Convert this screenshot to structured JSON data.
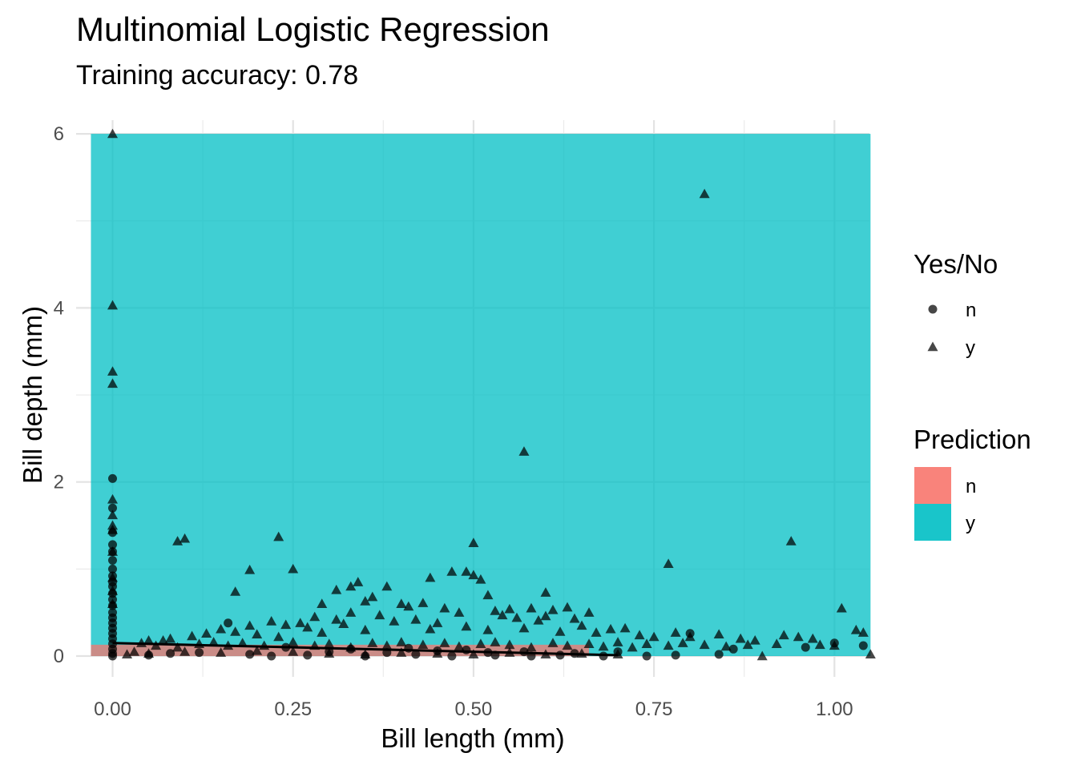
{
  "chart_data": {
    "type": "scatter",
    "title": "Multinomial Logistic Regression",
    "subtitle": "Training accuracy: 0.78",
    "xlabel": "Bill length (mm)",
    "ylabel": "Bill depth (mm)",
    "xlim": [
      -0.03,
      1.05
    ],
    "ylim": [
      0,
      6
    ],
    "x_ticks": [
      "0.00",
      "0.25",
      "0.50",
      "0.75",
      "1.00"
    ],
    "x_tick_values": [
      0,
      0.25,
      0.5,
      0.75,
      1.0
    ],
    "y_ticks": [
      "0",
      "2",
      "4",
      "6"
    ],
    "y_tick_values": [
      0,
      2,
      4,
      6
    ],
    "grid": true,
    "legend_position": "right",
    "prediction_regions": [
      {
        "class": "y",
        "x": [
          -0.03,
          1.05
        ],
        "y": [
          0,
          6
        ]
      },
      {
        "class": "n",
        "x": [
          -0.03,
          0.66
        ],
        "y": [
          0,
          0.13
        ]
      }
    ],
    "boundary_curve": {
      "x": [
        0.0,
        0.1,
        0.2,
        0.3,
        0.4,
        0.5,
        0.6,
        0.7
      ],
      "y": [
        0.15,
        0.13,
        0.11,
        0.09,
        0.07,
        0.05,
        0.03,
        0.01
      ]
    },
    "legends": {
      "shape": {
        "title": "Yes/No",
        "items": [
          {
            "label": "n",
            "shape": "circle"
          },
          {
            "label": "y",
            "shape": "triangle"
          }
        ]
      },
      "fill": {
        "title": "Prediction",
        "items": [
          {
            "label": "n",
            "color": "#F8766D"
          },
          {
            "label": "y",
            "color": "#00BFC4"
          }
        ]
      }
    },
    "series": [
      {
        "name": "y",
        "shape": "triangle",
        "points": [
          [
            0,
            6.0
          ],
          [
            0.82,
            5.31
          ],
          [
            0,
            4.03
          ],
          [
            0,
            3.27
          ],
          [
            0,
            3.13
          ],
          [
            0.57,
            2.35
          ],
          [
            0,
            1.8
          ],
          [
            0,
            1.62
          ],
          [
            0,
            1.5
          ],
          [
            0,
            1.45
          ],
          [
            0.09,
            1.32
          ],
          [
            0.1,
            1.35
          ],
          [
            0.23,
            1.37
          ],
          [
            0.5,
            1.3
          ],
          [
            0.94,
            1.32
          ],
          [
            0.25,
            1.0
          ],
          [
            0.19,
            0.99
          ],
          [
            0.77,
            1.06
          ],
          [
            0.47,
            0.97
          ],
          [
            0.49,
            0.97
          ],
          [
            0.5,
            0.93
          ],
          [
            0.44,
            0.9
          ],
          [
            0.51,
            0.88
          ],
          [
            0.34,
            0.85
          ],
          [
            0.33,
            0.8
          ],
          [
            0.31,
            0.76
          ],
          [
            0.38,
            0.8
          ],
          [
            0.17,
            0.74
          ],
          [
            0.6,
            0.73
          ],
          [
            0.52,
            0.7
          ],
          [
            0.36,
            0.68
          ],
          [
            0.35,
            0.63
          ],
          [
            0.4,
            0.6
          ],
          [
            0.43,
            0.61
          ],
          [
            0.29,
            0.6
          ],
          [
            0.46,
            0.55
          ],
          [
            0.55,
            0.54
          ],
          [
            0.58,
            0.55
          ],
          [
            0.61,
            0.53
          ],
          [
            0.63,
            0.56
          ],
          [
            0.66,
            0.5
          ],
          [
            0.41,
            0.57
          ],
          [
            0.48,
            0.5
          ],
          [
            0.53,
            0.52
          ],
          [
            0.54,
            0.47
          ],
          [
            0.56,
            0.44
          ],
          [
            0.6,
            0.46
          ],
          [
            0.64,
            0.43
          ],
          [
            0.59,
            0.41
          ],
          [
            0.33,
            0.5
          ],
          [
            0.37,
            0.47
          ],
          [
            0.42,
            0.42
          ],
          [
            0.45,
            0.38
          ],
          [
            0.39,
            0.4
          ],
          [
            0.28,
            0.45
          ],
          [
            0.31,
            0.42
          ],
          [
            0.26,
            0.38
          ],
          [
            0.22,
            0.4
          ],
          [
            0.24,
            0.36
          ],
          [
            0.27,
            0.33
          ],
          [
            0.32,
            0.37
          ],
          [
            0.19,
            0.35
          ],
          [
            0.15,
            0.31
          ],
          [
            0.13,
            0.26
          ],
          [
            0.11,
            0.23
          ],
          [
            0.08,
            0.2
          ],
          [
            0.05,
            0.18
          ],
          [
            0.17,
            0.28
          ],
          [
            0.2,
            0.25
          ],
          [
            0.23,
            0.22
          ],
          [
            0.29,
            0.27
          ],
          [
            0.35,
            0.3
          ],
          [
            0.44,
            0.31
          ],
          [
            0.49,
            0.34
          ],
          [
            0.52,
            0.3
          ],
          [
            0.57,
            0.32
          ],
          [
            0.62,
            0.28
          ],
          [
            0.65,
            0.35
          ],
          [
            0.67,
            0.27
          ],
          [
            0.69,
            0.31
          ],
          [
            0.71,
            0.32
          ],
          [
            0.73,
            0.24
          ],
          [
            0.75,
            0.22
          ],
          [
            0.78,
            0.27
          ],
          [
            0.8,
            0.22
          ],
          [
            0.84,
            0.25
          ],
          [
            0.87,
            0.2
          ],
          [
            0.89,
            0.18
          ],
          [
            0.93,
            0.24
          ],
          [
            0.95,
            0.22
          ],
          [
            0.97,
            0.2
          ],
          [
            1.01,
            0.55
          ],
          [
            1.03,
            0.3
          ],
          [
            1.04,
            0.27
          ],
          [
            1.05,
            0.02
          ],
          [
            0.04,
            0.15
          ],
          [
            0.06,
            0.12
          ],
          [
            0.07,
            0.18
          ],
          [
            0.09,
            0.1
          ],
          [
            0.12,
            0.14
          ],
          [
            0.14,
            0.16
          ],
          [
            0.16,
            0.12
          ],
          [
            0.18,
            0.15
          ],
          [
            0.21,
            0.12
          ],
          [
            0.25,
            0.16
          ],
          [
            0.28,
            0.12
          ],
          [
            0.3,
            0.14
          ],
          [
            0.33,
            0.1
          ],
          [
            0.36,
            0.15
          ],
          [
            0.38,
            0.12
          ],
          [
            0.4,
            0.16
          ],
          [
            0.43,
            0.13
          ],
          [
            0.46,
            0.15
          ],
          [
            0.48,
            0.11
          ],
          [
            0.51,
            0.14
          ],
          [
            0.53,
            0.16
          ],
          [
            0.55,
            0.13
          ],
          [
            0.58,
            0.1
          ],
          [
            0.61,
            0.15
          ],
          [
            0.63,
            0.12
          ],
          [
            0.66,
            0.14
          ],
          [
            0.68,
            0.11
          ],
          [
            0.7,
            0.16
          ],
          [
            0.72,
            0.1
          ],
          [
            0.74,
            0.14
          ],
          [
            0.77,
            0.12
          ],
          [
            0.79,
            0.15
          ],
          [
            0.82,
            0.13
          ],
          [
            0.85,
            0.11
          ],
          [
            0.88,
            0.13
          ],
          [
            0.9,
            0.0
          ],
          [
            0.92,
            0.14
          ],
          [
            0.98,
            0.13
          ],
          [
            1.0,
            0.12
          ],
          [
            0.02,
            0.02
          ],
          [
            0.03,
            0.05
          ],
          [
            0.05,
            0.03
          ],
          [
            0.1,
            0.05
          ],
          [
            0.15,
            0.04
          ],
          [
            0.2,
            0.06
          ],
          [
            0.25,
            0.05
          ],
          [
            0.3,
            0.03
          ],
          [
            0.35,
            0.02
          ],
          [
            0.4,
            0.04
          ],
          [
            0.45,
            0.03
          ],
          [
            0.5,
            0.02
          ],
          [
            0.55,
            0.04
          ],
          [
            0.6,
            0.02
          ],
          [
            0.65,
            0.03
          ],
          [
            0.7,
            0.02
          ],
          [
            0.0,
            0.6
          ],
          [
            0.0,
            0.9
          ],
          [
            0.0,
            1.2
          ],
          [
            0.0,
            0.75
          ]
        ]
      },
      {
        "name": "n",
        "shape": "circle",
        "points": [
          [
            0,
            2.04
          ],
          [
            0,
            1.7
          ],
          [
            0,
            1.42
          ],
          [
            0,
            1.28
          ],
          [
            0,
            1.2
          ],
          [
            0,
            1.1
          ],
          [
            0,
            1.0
          ],
          [
            0,
            0.92
          ],
          [
            0,
            0.85
          ],
          [
            0,
            0.8
          ],
          [
            0,
            0.72
          ],
          [
            0,
            0.65
          ],
          [
            0,
            0.58
          ],
          [
            0,
            0.5
          ],
          [
            0,
            0.44
          ],
          [
            0,
            0.38
          ],
          [
            0,
            0.32
          ],
          [
            0,
            0.26
          ],
          [
            0,
            0.2
          ],
          [
            0,
            0.14
          ],
          [
            0,
            0.08
          ],
          [
            0,
            0.03
          ],
          [
            0,
            0.0
          ],
          [
            0.16,
            0.38
          ],
          [
            0.8,
            0.26
          ],
          [
            0.84,
            0.02
          ],
          [
            0.78,
            0.01
          ],
          [
            0.74,
            0.0
          ],
          [
            0.19,
            0.02
          ],
          [
            0.22,
            0.0
          ],
          [
            0.27,
            0.01
          ],
          [
            0.35,
            0.0
          ],
          [
            0.42,
            0.02
          ],
          [
            0.47,
            0.0
          ],
          [
            0.53,
            0.01
          ],
          [
            0.58,
            0.0
          ],
          [
            0.62,
            0.01
          ],
          [
            0.68,
            0.0
          ],
          [
            0.12,
            0.04
          ],
          [
            0.08,
            0.03
          ],
          [
            0.05,
            0.01
          ],
          [
            0.3,
            0.05
          ],
          [
            0.38,
            0.04
          ],
          [
            0.45,
            0.06
          ],
          [
            0.52,
            0.04
          ],
          [
            0.57,
            0.05
          ],
          [
            0.64,
            0.03
          ],
          [
            0.24,
            0.1
          ],
          [
            0.33,
            0.08
          ],
          [
            0.41,
            0.09
          ],
          [
            0.49,
            0.07
          ],
          [
            1.0,
            0.15
          ],
          [
            1.04,
            0.12
          ],
          [
            0.96,
            0.1
          ],
          [
            0.86,
            0.08
          ],
          [
            0.7,
            0.05
          ]
        ]
      }
    ]
  }
}
